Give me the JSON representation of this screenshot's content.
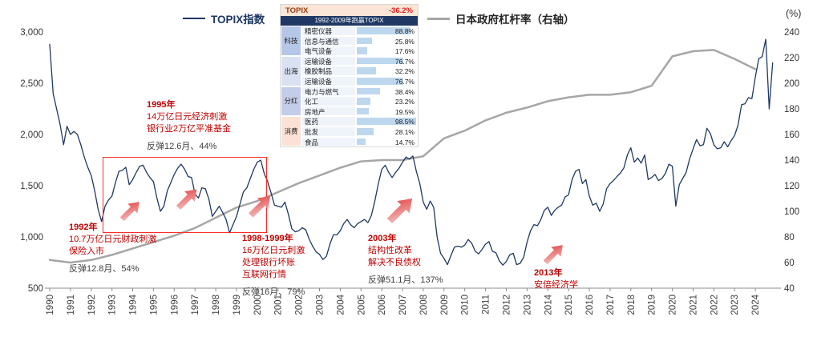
{
  "legend": {
    "topix": "TOPIX指数",
    "leverage": "日本政府杠杆率（右轴）"
  },
  "table": {
    "header": {
      "name": "TOPIX",
      "value": "-36.2%"
    },
    "subheader": "1992-2009年跑赢TOPIX",
    "bar_color": "#BDD7EE",
    "groups": [
      {
        "label": "科技",
        "color": "#B4C7E7",
        "rows": [
          [
            "精密仪器",
            88.8
          ],
          [
            "信息与通信",
            25.8
          ],
          [
            "电气设备",
            17.6
          ]
        ]
      },
      {
        "label": "出海",
        "color": "#D9E1F2",
        "rows": [
          [
            "运输设备",
            76.7
          ],
          [
            "橡胶制品",
            32.2
          ],
          [
            "运输设备",
            76.7
          ]
        ]
      },
      {
        "label": "分红",
        "color": "#C3CCE8",
        "rows": [
          [
            "电力与燃气",
            38.4
          ],
          [
            "化工",
            23.2
          ],
          [
            "房地产",
            19.5
          ]
        ]
      },
      {
        "label": "消费",
        "color": "#FBE2D5",
        "rows": [
          [
            "医药",
            98.5
          ],
          [
            "批发",
            28.1
          ],
          [
            "食品",
            14.7
          ]
        ]
      }
    ]
  },
  "annotations": {
    "a1995": {
      "title": "1995年",
      "line1": "14万亿日元经济刺激",
      "line2": "银行业2万亿平准基金",
      "rebound": "反弹12.6月、44%"
    },
    "a1992": {
      "title": "1992年",
      "line1": "10.7万亿日元财政刺激",
      "line2": "保险入市",
      "rebound": "反弹12.8月、54%"
    },
    "a1998": {
      "title": "1998-1999年",
      "line1": "16万亿日元刺激",
      "line2": "处理银行坏账",
      "line3": "互联网行情",
      "rebound": "反弹16月、79%"
    },
    "a2003": {
      "title": "2003年",
      "line1": "结构性改革",
      "line2": "解决不良债权",
      "rebound": "反弹51.1月、137%"
    },
    "a2013": {
      "title": "2013年",
      "line1": "安倍经济学"
    }
  },
  "chart_data": {
    "type": "line",
    "title": "",
    "x_axis": {
      "min": 1990,
      "max": 2025,
      "tick_years": [
        1990,
        1991,
        1992,
        1993,
        1994,
        1995,
        1996,
        1997,
        1998,
        1999,
        2000,
        2001,
        2002,
        2003,
        2004,
        2005,
        2006,
        2007,
        2008,
        2009,
        2010,
        2011,
        2012,
        2013,
        2014,
        2015,
        2016,
        2017,
        2018,
        2019,
        2020,
        2021,
        2022,
        2023,
        2024
      ]
    },
    "left_axis": {
      "min": 500,
      "max": 3000,
      "ticks": [
        {
          "v": 3000,
          "t": "3,000"
        },
        {
          "v": 2500,
          "t": "2,500"
        },
        {
          "v": 2000,
          "t": "2,000"
        },
        {
          "v": 1500,
          "t": "1,500"
        },
        {
          "v": 1000,
          "t": "1,000"
        },
        {
          "v": 500,
          "t": "500"
        }
      ]
    },
    "right_axis": {
      "min": 40,
      "max": 240,
      "unit": "(%)",
      "ticks": [
        {
          "v": 240,
          "t": "240"
        },
        {
          "v": 220,
          "t": "220"
        },
        {
          "v": 200,
          "t": "200"
        },
        {
          "v": 180,
          "t": "180"
        },
        {
          "v": 160,
          "t": "160"
        },
        {
          "v": 140,
          "t": "140"
        },
        {
          "v": 120,
          "t": "120"
        },
        {
          "v": 100,
          "t": "100"
        },
        {
          "v": 80,
          "t": "80"
        },
        {
          "v": 60,
          "t": "60"
        },
        {
          "v": 40,
          "t": "40"
        }
      ]
    },
    "series": [
      {
        "name": "TOPIX指数",
        "axis": "left",
        "color": "#1F3864",
        "width": 1.3,
        "x_start": 1990,
        "points_per_year": 6,
        "values": [
          2880,
          2400,
          2250,
          2100,
          1900,
          2080,
          2000,
          2030,
          2000,
          1900,
          1780,
          1680,
          1600,
          1450,
          1270,
          1150,
          1300,
          1360,
          1400,
          1530,
          1640,
          1650,
          1680,
          1510,
          1560,
          1630,
          1690,
          1700,
          1630,
          1580,
          1540,
          1380,
          1250,
          1300,
          1450,
          1530,
          1610,
          1670,
          1710,
          1660,
          1590,
          1580,
          1420,
          1380,
          1480,
          1470,
          1370,
          1200,
          1250,
          1300,
          1240,
          1170,
          1040,
          1120,
          1200,
          1320,
          1440,
          1480,
          1570,
          1660,
          1730,
          1750,
          1620,
          1540,
          1430,
          1310,
          1300,
          1290,
          1340,
          1220,
          1080,
          1050,
          1060,
          1090,
          1070,
          980,
          910,
          855,
          830,
          780,
          810,
          930,
          1020,
          1020,
          1060,
          1130,
          1170,
          1120,
          1090,
          1130,
          1150,
          1170,
          1140,
          1210,
          1350,
          1520,
          1660,
          1700,
          1630,
          1580,
          1630,
          1670,
          1730,
          1780,
          1760,
          1790,
          1640,
          1520,
          1340,
          1270,
          1350,
          1290,
          1000,
          840,
          790,
          730,
          820,
          900,
          910,
          900,
          920,
          975,
          940,
          860,
          835,
          880,
          930,
          955,
          860,
          845,
          765,
          725,
          760,
          825,
          840,
          730,
          742,
          800,
          950,
          1060,
          1120,
          1110,
          1170,
          1260,
          1290,
          1210,
          1260,
          1290,
          1310,
          1390,
          1410,
          1560,
          1640,
          1660,
          1520,
          1560,
          1400,
          1310,
          1330,
          1250,
          1320,
          1470,
          1520,
          1550,
          1590,
          1625,
          1675,
          1800,
          1870,
          1730,
          1770,
          1720,
          1800,
          1560,
          1580,
          1610,
          1550,
          1570,
          1620,
          1710,
          1690,
          1300,
          1510,
          1570,
          1630,
          1760,
          1860,
          1950,
          1890,
          1900,
          2060,
          2010,
          1900,
          1860,
          1870,
          1930,
          1880,
          1940,
          1990,
          2090,
          2290,
          2300,
          2360,
          2350,
          2560,
          2740,
          2760,
          2930,
          2250,
          2700
        ]
      },
      {
        "name": "日本政府杠杆率（右轴）",
        "axis": "right",
        "color": "#A6A6A6",
        "width": 2.5,
        "x_start": 1990,
        "points_per_year": 1,
        "values": [
          62,
          60,
          62,
          66,
          71,
          76,
          81,
          87,
          95,
          103,
          108,
          115,
          122,
          128,
          134,
          139,
          140,
          140,
          143,
          157,
          163,
          171,
          177,
          181,
          186,
          189,
          191,
          191,
          193,
          198,
          221,
          225,
          226,
          219,
          211
        ]
      }
    ]
  }
}
